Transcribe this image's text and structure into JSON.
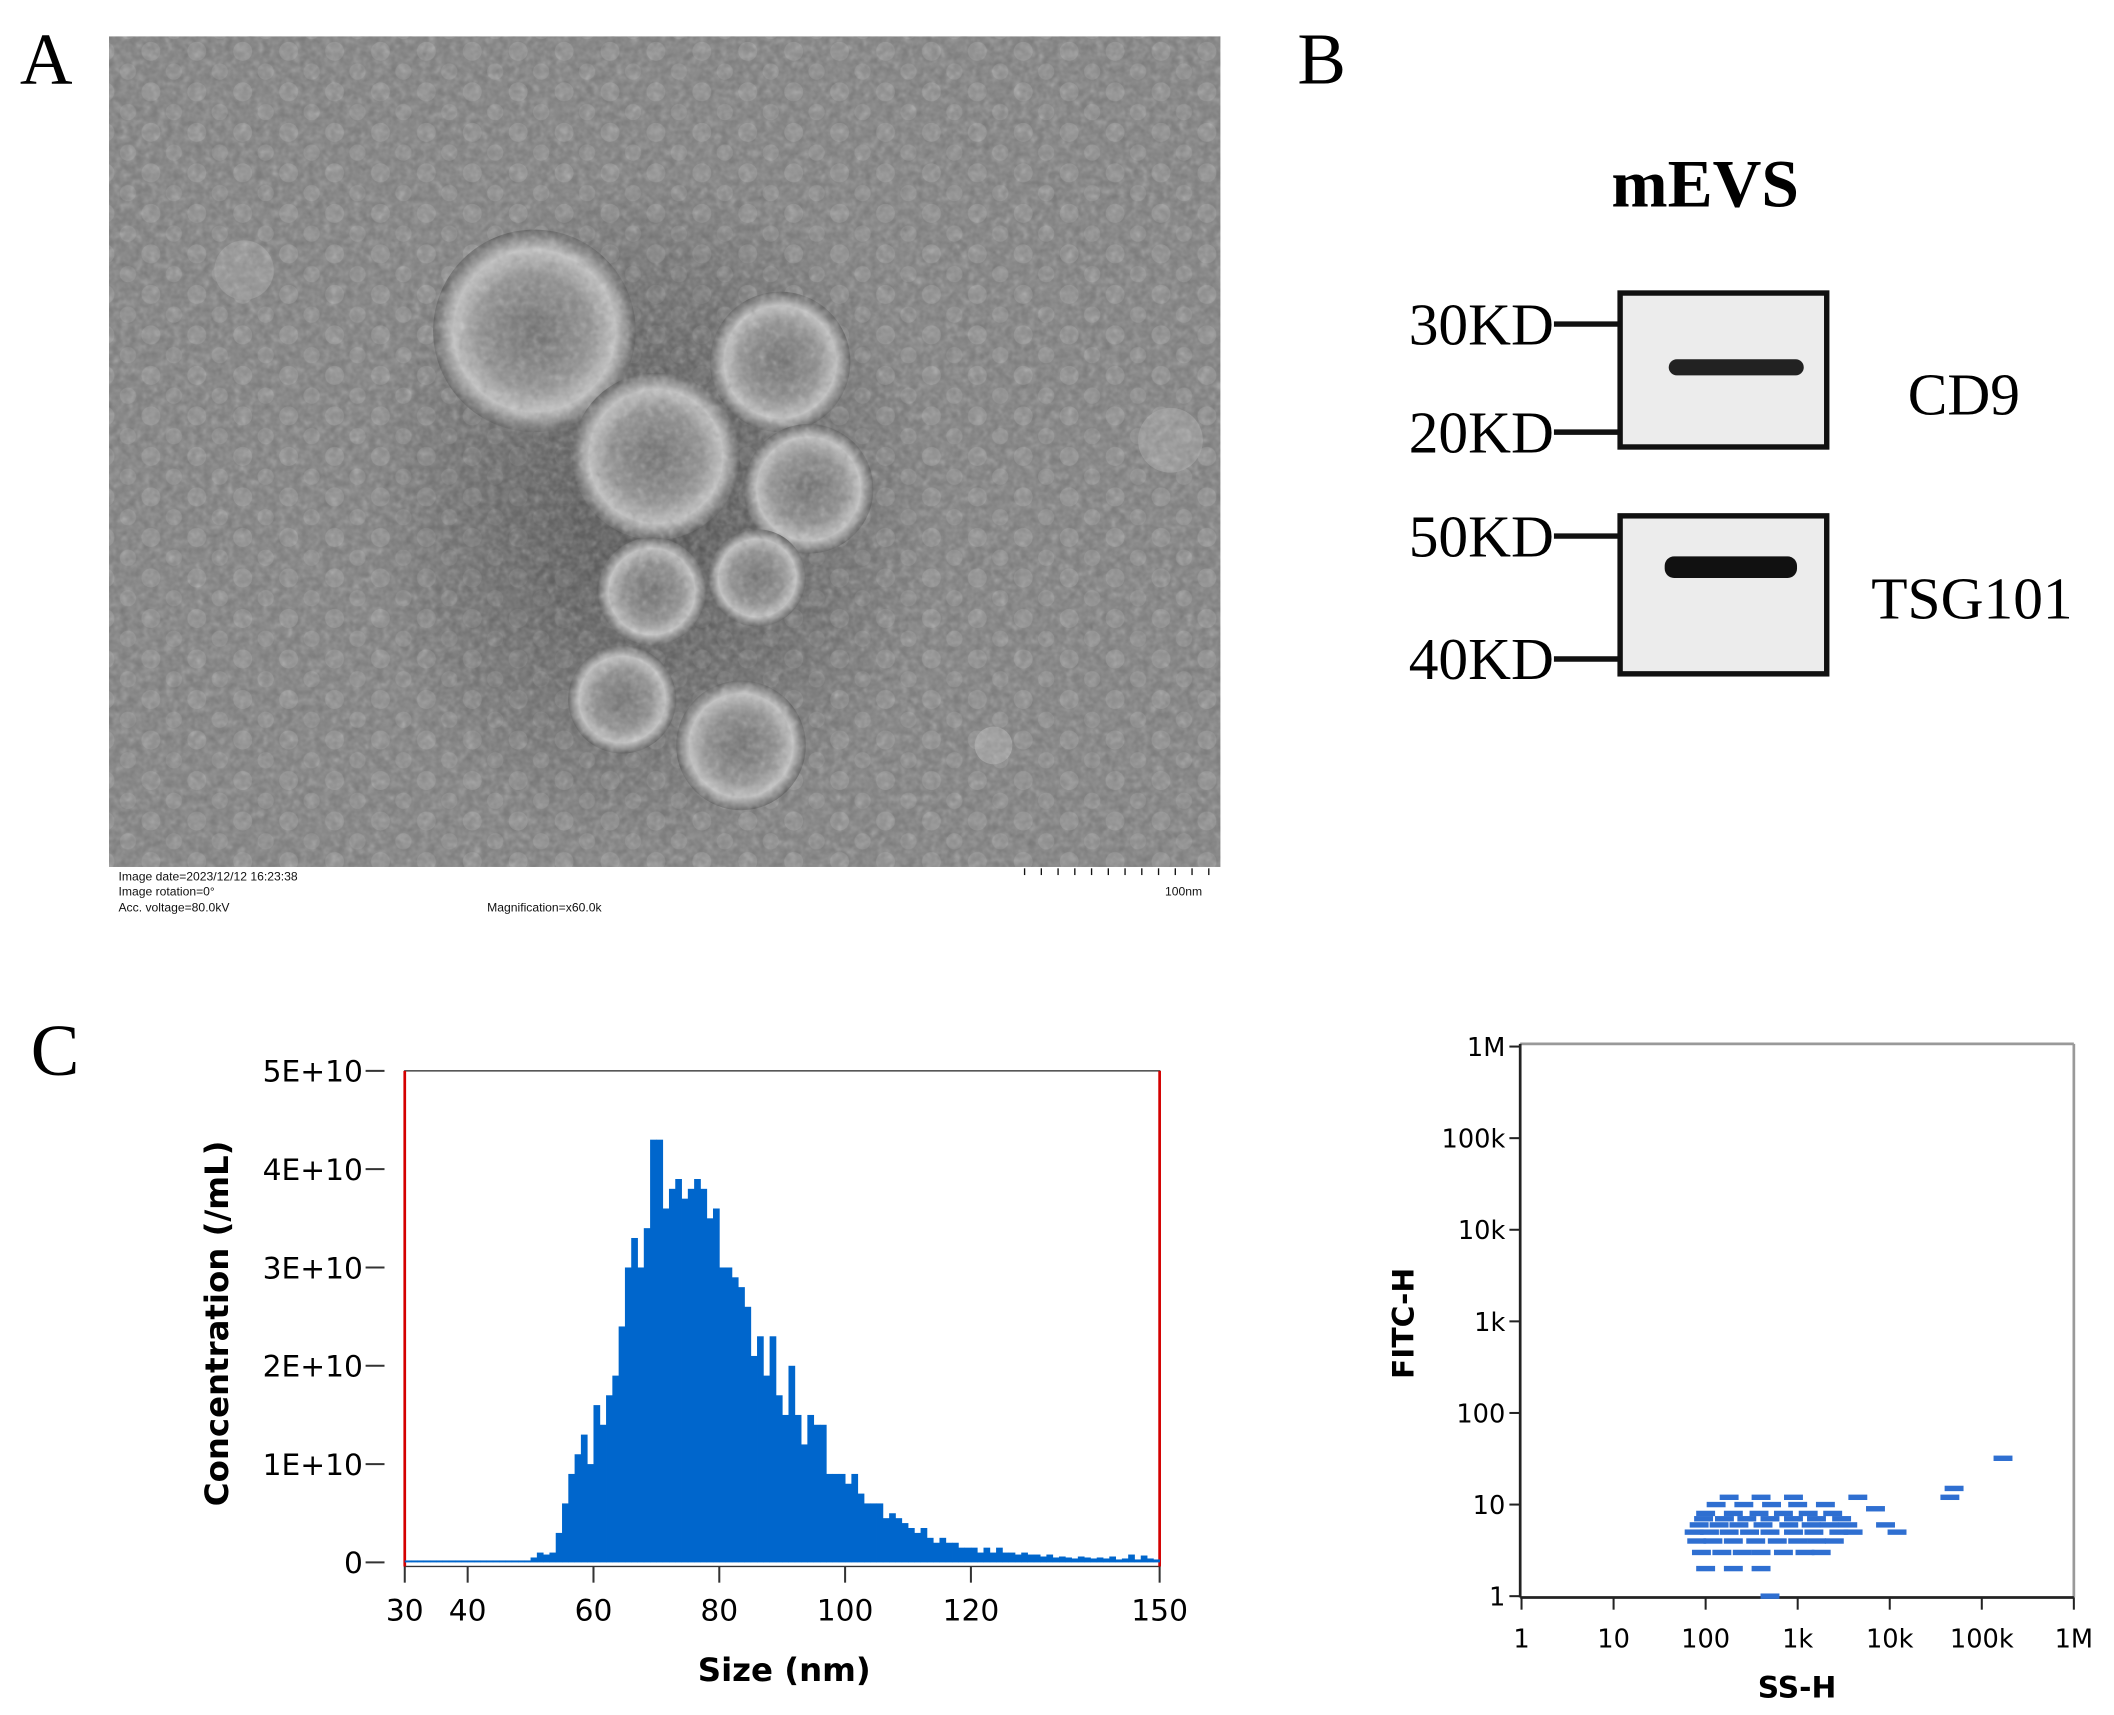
{
  "panels": {
    "a": "A",
    "b": "B",
    "c": "C"
  },
  "tem": {
    "info_lines": [
      "Image date=2023/12/12 16:23:38",
      "Image rotation=0°",
      "Acc. voltage=80.0kV"
    ],
    "magnification": "Magnification=x60.0k",
    "scale_bar": "100nm"
  },
  "blot": {
    "title": "mEVS",
    "bands": [
      {
        "name": "CD9",
        "markers": [
          "30KD",
          "20KD"
        ]
      },
      {
        "name": "TSG101",
        "markers": [
          "50KD",
          "40KD"
        ]
      }
    ]
  },
  "chart_data": [
    {
      "type": "histogram",
      "x_label": "Size (nm)",
      "y_label": "Concentration (/mL)",
      "color": "#0066cc",
      "bins": [
        30,
        31,
        32,
        33,
        34,
        35,
        36,
        37,
        38,
        39,
        40,
        41,
        42,
        43,
        44,
        45,
        46,
        47,
        48,
        49,
        50,
        51,
        52,
        53,
        54,
        55,
        56,
        57,
        58,
        59,
        60,
        61,
        62,
        63,
        64,
        65,
        66,
        67,
        68,
        69,
        70,
        71,
        72,
        73,
        74,
        75,
        76,
        77,
        78,
        79,
        80,
        81,
        82,
        83,
        84,
        85,
        86,
        87,
        88,
        89,
        90,
        91,
        92,
        93,
        94,
        95,
        96,
        97,
        98,
        99,
        100,
        101,
        102,
        103,
        104,
        105,
        106,
        107,
        108,
        109,
        110,
        111,
        112,
        113,
        114,
        115,
        116,
        117,
        118,
        119,
        120,
        121,
        122,
        123,
        124,
        125,
        126,
        127,
        128,
        129,
        130,
        131,
        132,
        133,
        134,
        135,
        136,
        137,
        138,
        139,
        140,
        141,
        142,
        143,
        144,
        145,
        146,
        147,
        148,
        149,
        150
      ],
      "values": [
        200000000.0,
        200000000.0,
        200000000.0,
        200000000.0,
        200000000.0,
        200000000.0,
        200000000.0,
        200000000.0,
        200000000.0,
        200000000.0,
        200000000.0,
        200000000.0,
        200000000.0,
        200000000.0,
        200000000.0,
        200000000.0,
        200000000.0,
        200000000.0,
        200000000.0,
        200000000.0,
        500000000.0,
        1000000000.0,
        800000000.0,
        1000000000.0,
        3000000000.0,
        6000000000.0,
        9000000000.0,
        11000000000.0,
        13000000000.0,
        10000000000.0,
        16000000000.0,
        14000000000.0,
        17000000000.0,
        19000000000.0,
        24000000000.0,
        30000000000.0,
        33000000000.0,
        30000000000.0,
        34000000000.0,
        43000000000.0,
        43000000000.0,
        36000000000.0,
        38000000000.0,
        39000000000.0,
        37000000000.0,
        38000000000.0,
        39000000000.0,
        38000000000.0,
        35000000000.0,
        36000000000.0,
        30000000000.0,
        30000000000.0,
        29000000000.0,
        28000000000.0,
        26000000000.0,
        21000000000.0,
        23000000000.0,
        19000000000.0,
        23000000000.0,
        17000000000.0,
        15000000000.0,
        20000000000.0,
        15000000000.0,
        12000000000.0,
        15000000000.0,
        14000000000.0,
        14000000000.0,
        9000000000.0,
        9000000000.0,
        9000000000.0,
        8000000000.0,
        9000000000.0,
        7000000000.0,
        6000000000.0,
        6000000000.0,
        6000000000.0,
        4500000000.0,
        5000000000.0,
        4500000000.0,
        4000000000.0,
        3500000000.0,
        3000000000.0,
        3500000000.0,
        2500000000.0,
        2000000000.0,
        2500000000.0,
        2000000000.0,
        2000000000.0,
        1500000000.0,
        1500000000.0,
        1500000000.0,
        1000000000.0,
        1500000000.0,
        1000000000.0,
        1500000000.0,
        1000000000.0,
        1000000000.0,
        800000000.0,
        1000000000.0,
        800000000.0,
        800000000.0,
        600000000.0,
        800000000.0,
        500000000.0,
        600000000.0,
        500000000.0,
        400000000.0,
        600000000.0,
        500000000.0,
        400000000.0,
        500000000.0,
        400000000.0,
        600000000.0,
        300000000.0,
        400000000.0,
        800000000.0,
        300000000.0,
        700000000.0,
        400000000.0,
        300000000.0
      ],
      "xlim": [
        30,
        150
      ],
      "xticks": [
        30,
        40,
        60,
        80,
        100,
        120,
        150
      ],
      "ylim": [
        0,
        50000000000.0
      ],
      "yticks": [
        0,
        {
          "value": 10000000000.0,
          "label": "1E+10"
        },
        {
          "value": 20000000000.0,
          "label": "2E+10"
        },
        {
          "value": 30000000000.0,
          "label": "3E+10"
        },
        {
          "value": 40000000000.0,
          "label": "4E+10"
        },
        {
          "value": 50000000000.0,
          "label": "5E+10"
        }
      ]
    },
    {
      "type": "scatter",
      "x_label": "SS-H",
      "y_label": "FITC-H",
      "color": "#2f6fd1",
      "xscale": "log",
      "yscale": "log",
      "x": [
        90,
        150,
        250,
        400,
        700,
        1200,
        1800,
        80,
        120,
        200,
        350,
        600,
        1000,
        1600,
        2500,
        75,
        110,
        180,
        300,
        500,
        900,
        1500,
        2800,
        4000,
        85,
        140,
        230,
        420,
        800,
        1400,
        2200,
        3500,
        95,
        160,
        280,
        500,
        900,
        1600,
        3000,
        100,
        200,
        380,
        700,
        1300,
        2400,
        130,
        260,
        520,
        1000,
        2000,
        180,
        400,
        900,
        100,
        200,
        400,
        9000,
        12000,
        7000,
        4500,
        45000,
        50000,
        170000,
        500
      ],
      "y": [
        3,
        3,
        3,
        3,
        3,
        3,
        3,
        4,
        4,
        4,
        4,
        4,
        4,
        4,
        4,
        5,
        5,
        5,
        5,
        5,
        5,
        5,
        5,
        5,
        6,
        6,
        6,
        6,
        6,
        6,
        6,
        6,
        7,
        7,
        7,
        7,
        7,
        7,
        7,
        8,
        8,
        8,
        8,
        8,
        8,
        10,
        10,
        10,
        10,
        10,
        12,
        12,
        12,
        2,
        2,
        2,
        6,
        5,
        9,
        12,
        12,
        15,
        32,
        1
      ],
      "xlim": [
        1,
        1000000
      ],
      "xticks": [
        1,
        10,
        100,
        {
          "value": 1000,
          "label": "1k"
        },
        {
          "value": 10000,
          "label": "10k"
        },
        {
          "value": 100000,
          "label": "100k"
        },
        {
          "value": 1000000,
          "label": "1M"
        }
      ],
      "ylim": [
        1,
        1000000
      ],
      "yticks": [
        1,
        10,
        100,
        {
          "value": 1000,
          "label": "1k"
        },
        {
          "value": 10000,
          "label": "10k"
        },
        {
          "value": 100000,
          "label": "100k"
        },
        {
          "value": 1000000,
          "label": "1M"
        }
      ]
    }
  ]
}
